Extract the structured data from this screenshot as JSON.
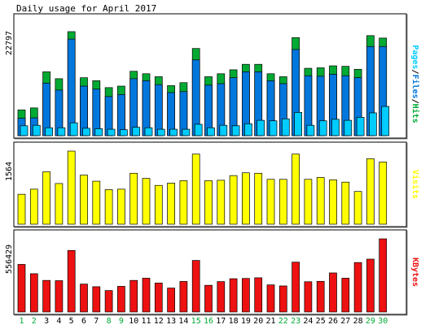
{
  "chart_data": [
    {
      "type": "bar",
      "title": "Daily usage for April 2017",
      "ylabel": "Pages/Files/Hits",
      "ylabel_parts": [
        "Pages",
        "Files",
        "Hits"
      ],
      "ymax_label": "22797",
      "ylim": [
        0,
        22797
      ],
      "categories": [
        "1",
        "2",
        "3",
        "4",
        "5",
        "6",
        "7",
        "8",
        "9",
        "10",
        "11",
        "12",
        "13",
        "14",
        "15",
        "16",
        "17",
        "18",
        "19",
        "20",
        "21",
        "22",
        "23",
        "24",
        "25",
        "26",
        "27",
        "28",
        "29",
        "30"
      ],
      "weekend_days": [
        "1",
        "2",
        "8",
        "9",
        "15",
        "16",
        "22",
        "23",
        "29",
        "30"
      ],
      "series": [
        {
          "name": "Hits",
          "color": "#00aa33",
          "values": [
            5200,
            5600,
            12900,
            11500,
            21000,
            11700,
            11100,
            9700,
            10000,
            13000,
            12500,
            11900,
            10100,
            10700,
            17600,
            11900,
            12500,
            13300,
            14400,
            14400,
            12500,
            11900,
            19800,
            13600,
            13700,
            14100,
            14000,
            13400,
            20200,
            19700
          ]
        },
        {
          "name": "Files",
          "color": "#0077dd",
          "values": [
            3500,
            3600,
            10600,
            9200,
            19500,
            10000,
            9400,
            7900,
            8300,
            11500,
            11100,
            10300,
            8700,
            8900,
            15300,
            10200,
            10500,
            11700,
            12900,
            12900,
            11100,
            10500,
            17400,
            12100,
            12000,
            12400,
            12100,
            11700,
            18000,
            18000
          ]
        },
        {
          "name": "Pages",
          "color": "#00ccff",
          "values": [
            2000,
            2100,
            1600,
            1600,
            2600,
            1500,
            1400,
            1300,
            1200,
            1700,
            1600,
            1300,
            1300,
            1300,
            2300,
            1600,
            2100,
            2000,
            2400,
            3100,
            3000,
            3400,
            4700,
            2100,
            3000,
            3300,
            3100,
            3700,
            4600,
            5900
          ]
        }
      ],
      "grid": false,
      "legend": "right"
    },
    {
      "type": "bar",
      "ylabel": "Visits",
      "ymax_label": "1564",
      "ylim": [
        0,
        1564
      ],
      "categories": [
        "1",
        "2",
        "3",
        "4",
        "5",
        "6",
        "7",
        "8",
        "9",
        "10",
        "11",
        "12",
        "13",
        "14",
        "15",
        "16",
        "17",
        "18",
        "19",
        "20",
        "21",
        "22",
        "23",
        "24",
        "25",
        "26",
        "27",
        "28",
        "29",
        "30"
      ],
      "series": [
        {
          "name": "Visits",
          "color": "#ffff00",
          "values": [
            640,
            750,
            1120,
            870,
            1564,
            1050,
            920,
            740,
            750,
            1090,
            980,
            830,
            880,
            930,
            1500,
            930,
            940,
            1040,
            1100,
            1090,
            960,
            960,
            1500,
            960,
            1000,
            950,
            900,
            700,
            1400,
            1330
          ]
        }
      ],
      "grid": false,
      "legend": "right"
    },
    {
      "type": "bar",
      "ylabel": "KBytes",
      "ymax_label": "556429",
      "ylim": [
        0,
        556429
      ],
      "categories": [
        "1",
        "2",
        "3",
        "4",
        "5",
        "6",
        "7",
        "8",
        "9",
        "10",
        "11",
        "12",
        "13",
        "14",
        "15",
        "16",
        "17",
        "18",
        "19",
        "20",
        "21",
        "22",
        "23",
        "24",
        "25",
        "26",
        "27",
        "28",
        "29",
        "30"
      ],
      "series": [
        {
          "name": "KBytes",
          "color": "#ee1111",
          "values": [
            362000,
            291000,
            240000,
            238000,
            468000,
            212000,
            192000,
            163000,
            195000,
            240000,
            257000,
            220000,
            182000,
            232000,
            392000,
            203000,
            231000,
            253000,
            255000,
            260000,
            206000,
            198000,
            379000,
            230000,
            233000,
            297000,
            257000,
            376000,
            402000,
            556429
          ]
        }
      ],
      "grid": false,
      "legend": "right"
    }
  ]
}
